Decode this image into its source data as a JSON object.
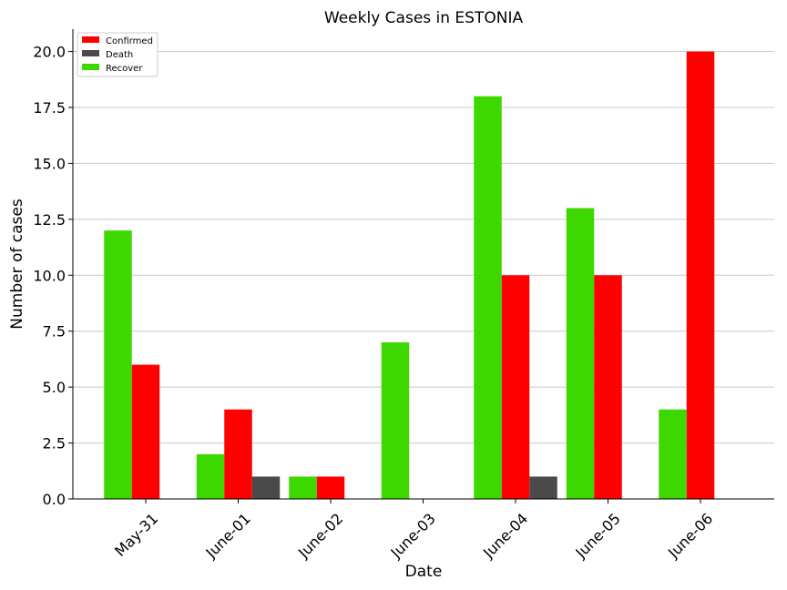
{
  "chart_data": {
    "type": "bar",
    "title": "Weekly Cases in ESTONIA",
    "xlabel": "Date",
    "ylabel": "Number of cases",
    "categories": [
      "May-31",
      "June-01",
      "June-02",
      "June-03",
      "June-04",
      "June-05",
      "June-06"
    ],
    "ylim": [
      0,
      21
    ],
    "yticks": [
      "0.0",
      "2.5",
      "5.0",
      "7.5",
      "10.0",
      "12.5",
      "15.0",
      "17.5",
      "20.0"
    ],
    "grid": "horizontal",
    "legend_position": "top-left",
    "series": [
      {
        "name": "Recover",
        "color": "#3dd800",
        "values": [
          12,
          2,
          1,
          7,
          18,
          13,
          4
        ]
      },
      {
        "name": "Confirmed",
        "color": "#ff0000",
        "values": [
          6,
          4,
          1,
          0,
          10,
          10,
          20
        ]
      },
      {
        "name": "Death",
        "color": "#4a4a4a",
        "values": [
          0,
          1,
          0,
          0,
          1,
          0,
          0
        ]
      }
    ],
    "legend_order": [
      "Confirmed",
      "Death",
      "Recover"
    ]
  }
}
